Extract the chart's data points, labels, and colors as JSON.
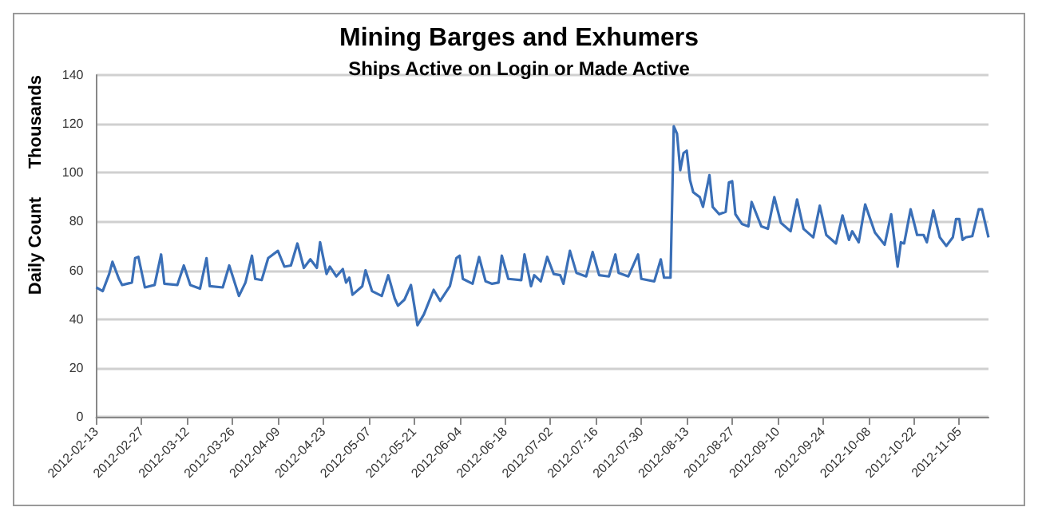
{
  "chart_data": {
    "type": "line",
    "title": "Mining Barges and Exhumers",
    "subtitle": "Ships Active on Login or Made Active",
    "ylabel": "Daily Count",
    "annotations": [
      "Thousands"
    ],
    "x": [
      "2012-02-13",
      "2012-02-15",
      "2012-02-17",
      "2012-02-18",
      "2012-02-20",
      "2012-02-21",
      "2012-02-24",
      "2012-02-25",
      "2012-02-26",
      "2012-02-28",
      "2012-03-02",
      "2012-03-04",
      "2012-03-05",
      "2012-03-09",
      "2012-03-11",
      "2012-03-13",
      "2012-03-16",
      "2012-03-18",
      "2012-03-19",
      "2012-03-23",
      "2012-03-25",
      "2012-03-28",
      "2012-03-30",
      "2012-04-01",
      "2012-04-02",
      "2012-04-04",
      "2012-04-06",
      "2012-04-09",
      "2012-04-11",
      "2012-04-13",
      "2012-04-15",
      "2012-04-17",
      "2012-04-19",
      "2012-04-21",
      "2012-04-22",
      "2012-04-24",
      "2012-04-25",
      "2012-04-27",
      "2012-04-29",
      "2012-04-30",
      "2012-05-01",
      "2012-05-02",
      "2012-05-05",
      "2012-05-06",
      "2012-05-08",
      "2012-05-11",
      "2012-05-13",
      "2012-05-15",
      "2012-05-16",
      "2012-05-18",
      "2012-05-20",
      "2012-05-22",
      "2012-05-24",
      "2012-05-27",
      "2012-05-29",
      "2012-06-01",
      "2012-06-03",
      "2012-06-04",
      "2012-06-05",
      "2012-06-08",
      "2012-06-10",
      "2012-06-12",
      "2012-06-14",
      "2012-06-16",
      "2012-06-17",
      "2012-06-19",
      "2012-06-23",
      "2012-06-24",
      "2012-06-26",
      "2012-06-27",
      "2012-06-29",
      "2012-07-01",
      "2012-07-03",
      "2012-07-05",
      "2012-07-06",
      "2012-07-08",
      "2012-07-10",
      "2012-07-13",
      "2012-07-15",
      "2012-07-17",
      "2012-07-20",
      "2012-07-22",
      "2012-07-23",
      "2012-07-26",
      "2012-07-29",
      "2012-07-30",
      "2012-08-03",
      "2012-08-05",
      "2012-08-06",
      "2012-08-08",
      "2012-08-09",
      "2012-08-10",
      "2012-08-11",
      "2012-08-12",
      "2012-08-13",
      "2012-08-14",
      "2012-08-15",
      "2012-08-17",
      "2012-08-18",
      "2012-08-20",
      "2012-08-21",
      "2012-08-23",
      "2012-08-25",
      "2012-08-26",
      "2012-08-27",
      "2012-08-28",
      "2012-08-30",
      "2012-09-01",
      "2012-09-02",
      "2012-09-05",
      "2012-09-07",
      "2012-09-09",
      "2012-09-11",
      "2012-09-14",
      "2012-09-16",
      "2012-09-18",
      "2012-09-21",
      "2012-09-23",
      "2012-09-25",
      "2012-09-28",
      "2012-09-30",
      "2012-10-02",
      "2012-10-03",
      "2012-10-05",
      "2012-10-07",
      "2012-10-10",
      "2012-10-13",
      "2012-10-15",
      "2012-10-17",
      "2012-10-18",
      "2012-10-19",
      "2012-10-21",
      "2012-10-23",
      "2012-10-25",
      "2012-10-26",
      "2012-10-28",
      "2012-10-30",
      "2012-11-01",
      "2012-11-03",
      "2012-11-04",
      "2012-11-05",
      "2012-11-06",
      "2012-11-07",
      "2012-11-09",
      "2012-11-11",
      "2012-11-12",
      "2012-11-14"
    ],
    "series": [
      {
        "color": "#3a6fb7",
        "values": [
          53,
          51.5,
          58.5,
          63.5,
          56.5,
          54,
          55,
          65,
          65.5,
          53,
          54,
          66.5,
          54.5,
          54,
          62,
          54,
          52.5,
          65,
          53.5,
          53,
          62,
          49.5,
          55,
          66,
          56.5,
          56,
          65,
          68,
          61.5,
          62,
          71,
          61,
          64.5,
          61,
          71.5,
          58.5,
          61.5,
          57.5,
          60.5,
          55,
          57,
          50,
          53.5,
          60,
          51.5,
          49.5,
          58,
          48.5,
          45.5,
          48,
          54,
          37.5,
          42,
          52,
          47.5,
          53.5,
          65,
          66,
          56.5,
          54.5,
          65.5,
          55.5,
          54.5,
          55,
          66,
          56.5,
          56,
          66.5,
          53.5,
          58,
          55.5,
          65.5,
          58.5,
          58,
          54.5,
          68,
          59,
          57.5,
          67.5,
          58,
          57.5,
          66.5,
          59,
          57.5,
          66.5,
          56.5,
          55.5,
          64.5,
          57,
          57,
          119,
          116,
          101,
          108,
          109,
          97,
          92,
          90,
          86,
          99,
          86,
          83,
          84,
          96,
          96.5,
          83,
          79,
          78,
          88,
          78,
          77,
          90,
          79.5,
          76,
          89,
          77,
          73.5,
          86.5,
          74.5,
          71,
          82.5,
          72.5,
          76,
          71.5,
          87,
          75.5,
          70.5,
          83,
          61.5,
          71.5,
          71,
          85,
          74.5,
          74.5,
          71.5,
          84.5,
          73.5,
          70,
          73.5,
          81,
          81,
          72.5,
          73.5,
          74,
          85,
          85,
          73.5
        ]
      }
    ],
    "xlim": [
      "2012-02-13",
      "2012-11-14"
    ],
    "xticks": [
      "2012-02-13",
      "2012-02-27",
      "2012-03-12",
      "2012-03-26",
      "2012-04-09",
      "2012-04-23",
      "2012-05-07",
      "2012-05-21",
      "2012-06-04",
      "2012-06-18",
      "2012-07-02",
      "2012-07-16",
      "2012-07-30",
      "2012-08-13",
      "2012-08-27",
      "2012-09-10",
      "2012-09-24",
      "2012-10-08",
      "2012-10-22",
      "2012-11-05"
    ],
    "ylim": [
      0,
      140
    ],
    "yticks": [
      0,
      20,
      40,
      60,
      80,
      100,
      120,
      140
    ],
    "grid": "y",
    "marker": "none",
    "line_style": "solid"
  }
}
